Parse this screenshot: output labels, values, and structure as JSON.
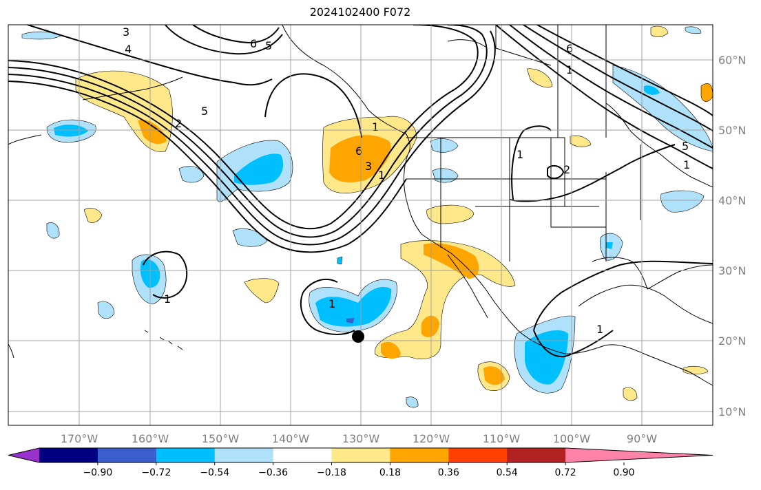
{
  "title": "2024102400 F072",
  "map": {
    "lon_labels": [
      "170°W",
      "160°W",
      "150°W",
      "140°W",
      "130°W",
      "120°W",
      "110°W",
      "100°W",
      "90°W"
    ],
    "lat_labels": [
      "60°N",
      "50°N",
      "40°N",
      "30°N",
      "20°N",
      "10°N"
    ],
    "contour_labels": [
      "3",
      "4",
      "5",
      "6",
      "5",
      "2",
      "6",
      "3",
      "1",
      "1",
      "2",
      "1",
      "6",
      "5",
      "1",
      "1",
      "1",
      "1",
      "1"
    ],
    "marker": {
      "lon": -130.2,
      "lat": 20.7,
      "label": ""
    }
  },
  "colorbar": {
    "ticks": [
      "−0.90",
      "−0.72",
      "−0.54",
      "−0.36",
      "−0.18",
      "0.18",
      "0.36",
      "0.54",
      "0.72",
      "0.90"
    ],
    "colors": [
      "#9932cc",
      "#000080",
      "#3a5fcd",
      "#00bfff",
      "#afe1fa",
      "#ffffff",
      "#ffe88a",
      "#ffa500",
      "#ff4000",
      "#b22222",
      "#ff82ab"
    ],
    "extend": "both"
  }
}
